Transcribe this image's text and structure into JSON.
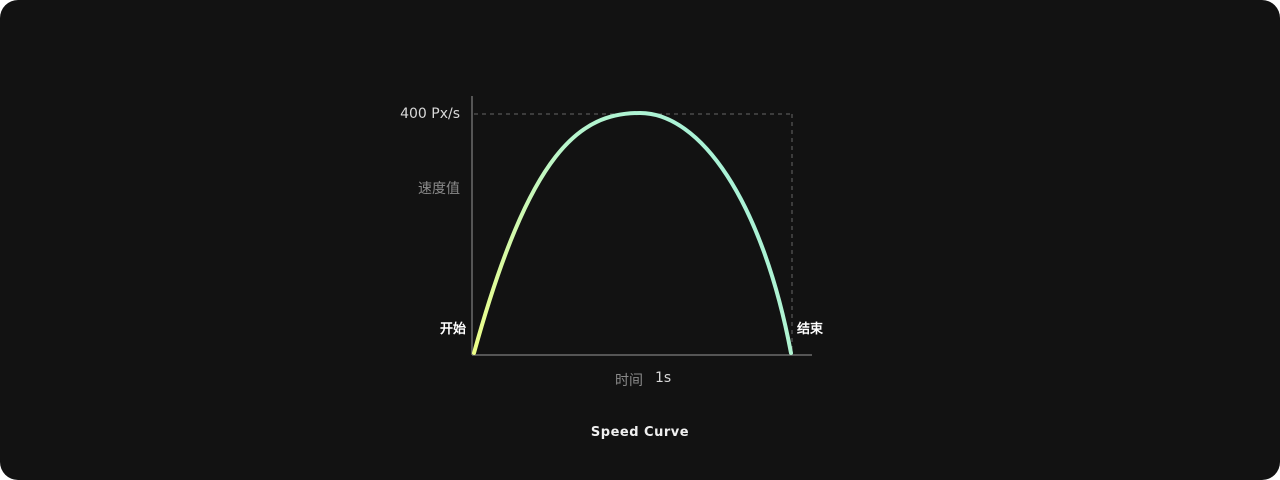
{
  "diagram": {
    "y_max_label": "400 Px/s",
    "y_axis_label": "速度值",
    "start_label": "开始",
    "end_label": "结束",
    "x_axis_label": "时间",
    "x_value_label": "1s",
    "caption": "Speed Curve",
    "colors": {
      "background": "#121212",
      "curve_start": "#eeff88",
      "curve_end": "#9ef0de",
      "axis": "#555555"
    }
  }
}
